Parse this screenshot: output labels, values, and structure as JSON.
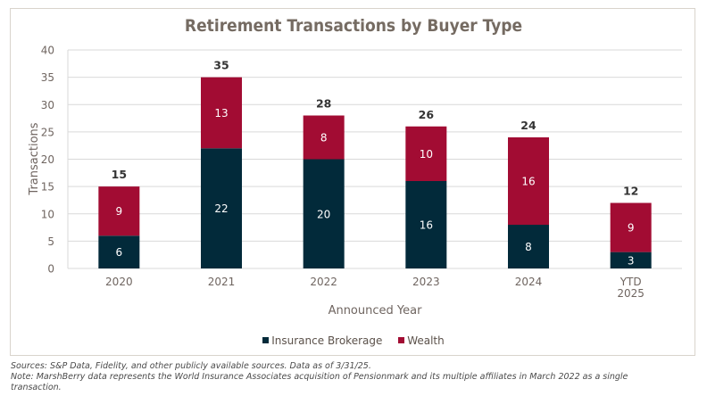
{
  "chart_data": {
    "type": "bar",
    "stacked": true,
    "title": "Retirement Transactions by Buyer Type",
    "xlabel": "Announced Year",
    "ylabel": "Transactions",
    "ylim": [
      0,
      40
    ],
    "yticks": [
      0,
      5,
      10,
      15,
      20,
      25,
      30,
      35,
      40
    ],
    "grid": true,
    "legend_position": "bottom",
    "categories": [
      "2020",
      "2021",
      "2022",
      "2023",
      "2024",
      "YTD\n2025"
    ],
    "series": [
      {
        "name": "Insurance Brokerage",
        "color": "#022a3a",
        "values": [
          6,
          22,
          20,
          16,
          8,
          3
        ]
      },
      {
        "name": "Wealth",
        "color": "#a20c33",
        "values": [
          9,
          13,
          8,
          10,
          16,
          9
        ]
      }
    ],
    "totals": [
      15,
      35,
      28,
      26,
      24,
      12
    ]
  },
  "footer": {
    "sources": "Sources: S&P Data, Fidelity, and other publicly available sources. Data as of 3/31/25.",
    "note_line1": "Note: MarshBerry data represents the World Insurance Associates acquisition of Pensionmark and its multiple affiliates in March 2022 as a single",
    "note_line2": "transaction."
  }
}
